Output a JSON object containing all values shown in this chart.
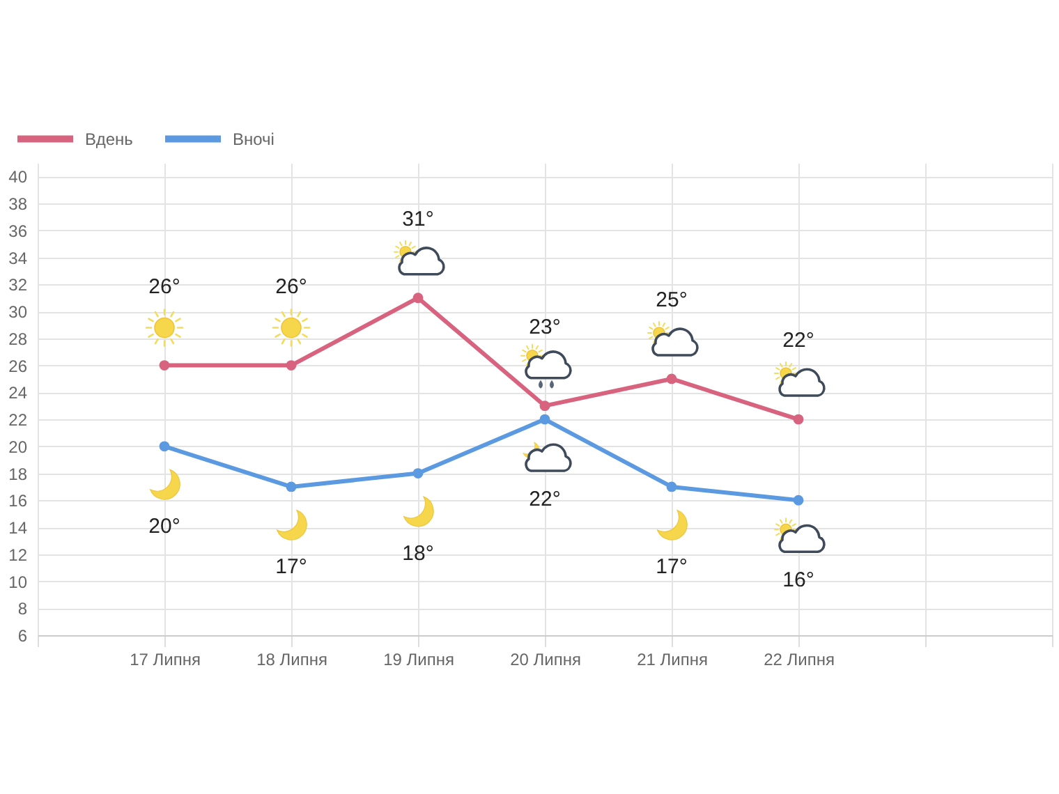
{
  "chart_data": {
    "type": "line",
    "categories": [
      null,
      "17 Липня",
      "18 Липня",
      "19 Липня",
      "20 Липня",
      "21 Липня",
      "22 Липня",
      null,
      null
    ],
    "series": [
      {
        "name": "Вдень",
        "color": "#d8637f",
        "values": [
          null,
          26,
          26,
          31,
          23,
          25,
          22,
          null,
          null
        ],
        "value_labels": [
          null,
          "26°",
          "26°",
          "31°",
          "23°",
          "25°",
          "22°",
          null,
          null
        ]
      },
      {
        "name": "Вночі",
        "color": "#5b9ae0",
        "values": [
          null,
          20,
          17,
          18,
          22,
          17,
          16,
          null,
          null
        ],
        "value_labels": [
          null,
          "20°",
          "17°",
          "18°",
          "22°",
          "17°",
          "16°",
          null,
          null
        ]
      }
    ],
    "ylim": [
      6,
      41
    ],
    "yticks": [
      6,
      8,
      10,
      12,
      14,
      16,
      18,
      20,
      22,
      24,
      26,
      28,
      30,
      32,
      34,
      36,
      38,
      40
    ],
    "grid": true,
    "legend": "top left",
    "marker": "circle",
    "line_style": "solid"
  }
}
